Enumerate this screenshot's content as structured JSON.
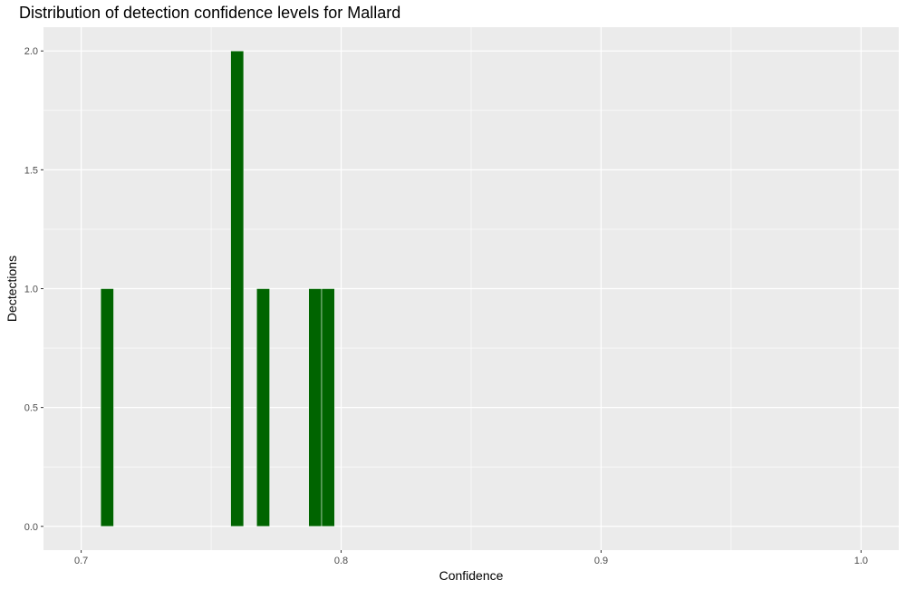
{
  "chart_data": {
    "type": "bar",
    "title": "Distribution of detection confidence levels for Mallard",
    "xlabel": "Confidence",
    "ylabel": "Dectections",
    "xlim": [
      0.6855,
      1.0145
    ],
    "ylim": [
      -0.1,
      2.1
    ],
    "x_ticks": [
      0.7,
      0.8,
      0.9,
      1.0
    ],
    "x_tick_labels": [
      "0.7",
      "0.8",
      "0.9",
      "1.0"
    ],
    "y_ticks": [
      0,
      0.5,
      1,
      1.5,
      2
    ],
    "y_tick_labels": [
      "0.0",
      "0.5",
      "1.0",
      "1.5",
      "2.0"
    ],
    "bin_width": 0.005,
    "bars": [
      {
        "x": 0.71,
        "count": 1
      },
      {
        "x": 0.76,
        "count": 2
      },
      {
        "x": 0.77,
        "count": 1
      },
      {
        "x": 0.79,
        "count": 1
      },
      {
        "x": 0.795,
        "count": 1
      }
    ],
    "bar_color": "#006400",
    "panel_color": "#EBEBEB",
    "grid": true
  }
}
